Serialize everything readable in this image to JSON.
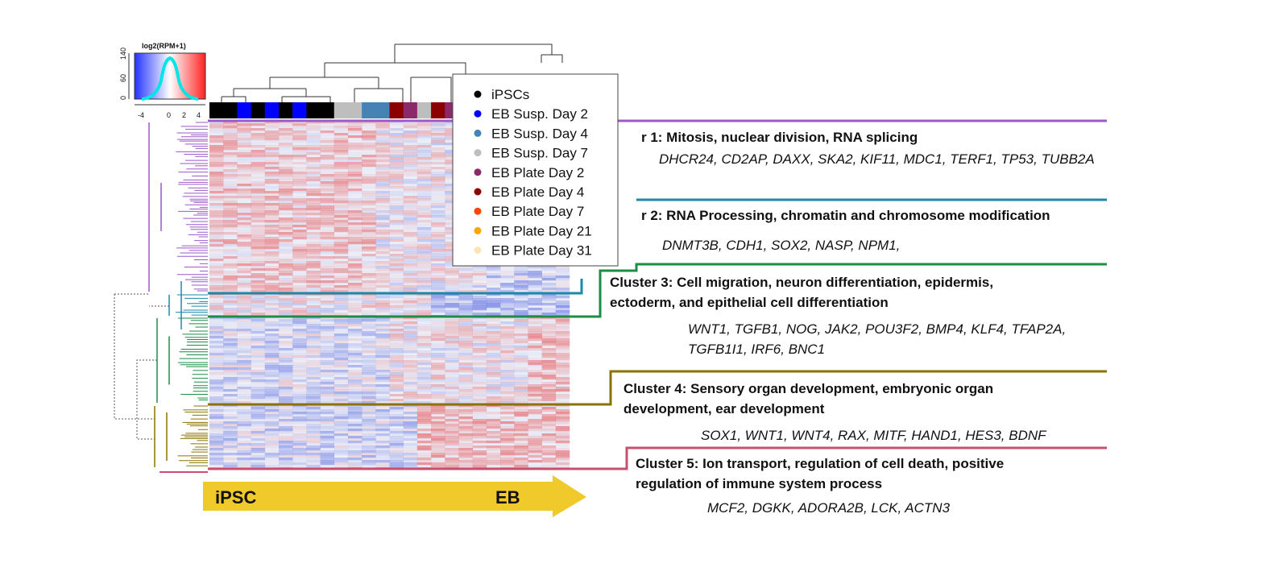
{
  "colorbar": {
    "title": "log2(RPM+1)",
    "y_ticks": [
      "0",
      "60",
      "140"
    ],
    "x_ticks": [
      "-4",
      "0",
      "2",
      "4"
    ],
    "colors": [
      "#2233ff",
      "#ffffff",
      "#ff2222"
    ],
    "density_color": "#00e5e5"
  },
  "legend": {
    "items": [
      {
        "label": "iPSCs",
        "color": "#000000"
      },
      {
        "label": "EB Susp. Day 2",
        "color": "#0000ff"
      },
      {
        "label": "EB Susp. Day 4",
        "color": "#4682b4"
      },
      {
        "label": "EB Susp. Day 7",
        "color": "#bebebe"
      },
      {
        "label": "EB Plate Day 2",
        "color": "#8b2a6b"
      },
      {
        "label": "EB Plate Day 4",
        "color": "#8b0000"
      },
      {
        "label": "EB Plate Day 7",
        "color": "#ff4500"
      },
      {
        "label": "EB Plate Day 21",
        "color": "#ffa500"
      },
      {
        "label": "EB Plate Day 31",
        "color": "#ffe4b5"
      }
    ]
  },
  "sample_strip": [
    "#000000",
    "#000000",
    "#0000ff",
    "#000000",
    "#0000ff",
    "#000000",
    "#0000ff",
    "#000000",
    "#000000",
    "#bebebe",
    "#bebebe",
    "#4682b4",
    "#4682b4",
    "#8b0000",
    "#8b2a6b",
    "#bebebe",
    "#8b0000",
    "#8b2a6b",
    "#bebebe",
    "#ff4500",
    "#ff4500",
    "#ffa500",
    "#ffa500",
    "#ffe4b5",
    "#ffe4b5",
    "#ffe4b5"
  ],
  "arrow": {
    "start_label": "iPSC",
    "end_label": "EB",
    "color": "#f0c92a"
  },
  "clusters": [
    {
      "title": "r 1: Mitosis, nuclear division, RNA splicing",
      "genes": "DHCR24, CD2AP, DAXX, SKA2, KIF11, MDC1, TERF1, TP53, TUBB2A",
      "color": "#9b59c9"
    },
    {
      "title": "r 2:  RNA Processing, chromatin and chromosome modification",
      "genes": "DNMT3B, CDH1, SOX2,  NASP, NPM1,",
      "color": "#1a8aa8"
    },
    {
      "title": "Cluster 3: Cell migration, neuron differentiation, epidermis, ectoderm, and epithelial cell differentiation",
      "genes": "WNT1, TGFB1, NOG, JAK2, POU3F2, BMP4, KLF4, TFAP2A, TGFB1I1, IRF6, BNC1",
      "color": "#1e8c46"
    },
    {
      "title": "Cluster 4: Sensory organ development, embryonic organ development, ear development",
      "genes": "SOX1,  WNT1, WNT4, RAX, MITF, HAND1, HES3, BDNF",
      "color": "#8b7300"
    },
    {
      "title": "Cluster 5: Ion transport, regulation of cell death, positive regulation of immune system process",
      "genes": "MCF2, DGKK, ADORA2B, LCK, ACTN3",
      "color": "#c8506e"
    }
  ]
}
